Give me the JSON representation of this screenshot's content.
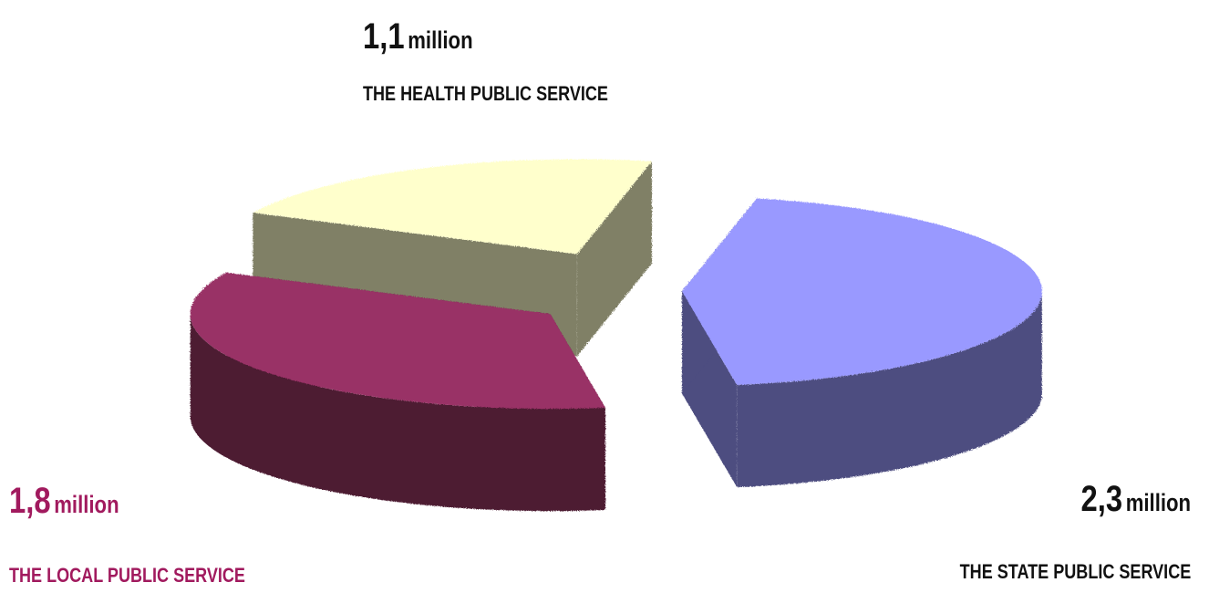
{
  "chart_data": {
    "type": "pie",
    "title": "",
    "slices": [
      {
        "label": "THE HEALTH PUBLIC SERVICE",
        "value": 1.1,
        "value_text": "1,1",
        "unit": "million",
        "top_color": "#ffffcc",
        "side_color": "#808066",
        "label_color": "#111111"
      },
      {
        "label": "THE STATE PUBLIC SERVICE",
        "value": 2.3,
        "value_text": "2,3",
        "unit": "million",
        "top_color": "#9999ff",
        "side_color": "#4d4d80",
        "label_color": "#111111"
      },
      {
        "label": "THE LOCAL PUBLIC SERVICE",
        "value": 1.8,
        "value_text": "1,8",
        "unit": "million",
        "top_color": "#993366",
        "side_color": "#4d1a33",
        "label_color": "#a11a5e"
      }
    ],
    "style": "3d-exploded",
    "legend": "none"
  }
}
